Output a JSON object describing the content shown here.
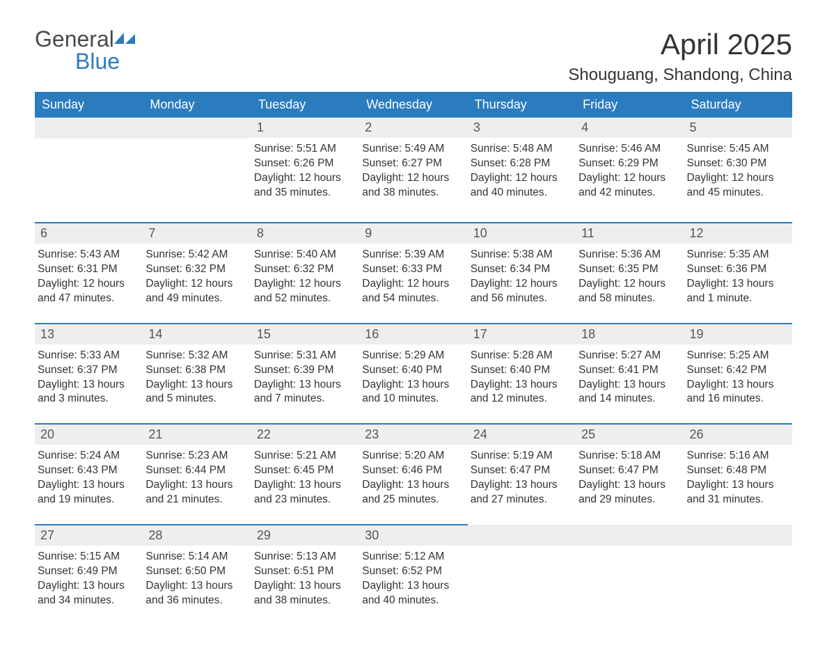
{
  "logo": {
    "word1": "General",
    "word2": "Blue"
  },
  "title": "April 2025",
  "location": "Shouguang, Shandong, China",
  "colors": {
    "brand_blue": "#2b7bbf",
    "header_text": "#ffffff",
    "daynum_bg": "#eeeeee",
    "text": "#333333",
    "background": "#ffffff"
  },
  "day_headers": [
    "Sunday",
    "Monday",
    "Tuesday",
    "Wednesday",
    "Thursday",
    "Friday",
    "Saturday"
  ],
  "weeks": [
    [
      null,
      null,
      {
        "n": "1",
        "sunrise": "5:51 AM",
        "sunset": "6:26 PM",
        "daylight": "12 hours and 35 minutes."
      },
      {
        "n": "2",
        "sunrise": "5:49 AM",
        "sunset": "6:27 PM",
        "daylight": "12 hours and 38 minutes."
      },
      {
        "n": "3",
        "sunrise": "5:48 AM",
        "sunset": "6:28 PM",
        "daylight": "12 hours and 40 minutes."
      },
      {
        "n": "4",
        "sunrise": "5:46 AM",
        "sunset": "6:29 PM",
        "daylight": "12 hours and 42 minutes."
      },
      {
        "n": "5",
        "sunrise": "5:45 AM",
        "sunset": "6:30 PM",
        "daylight": "12 hours and 45 minutes."
      }
    ],
    [
      {
        "n": "6",
        "sunrise": "5:43 AM",
        "sunset": "6:31 PM",
        "daylight": "12 hours and 47 minutes."
      },
      {
        "n": "7",
        "sunrise": "5:42 AM",
        "sunset": "6:32 PM",
        "daylight": "12 hours and 49 minutes."
      },
      {
        "n": "8",
        "sunrise": "5:40 AM",
        "sunset": "6:32 PM",
        "daylight": "12 hours and 52 minutes."
      },
      {
        "n": "9",
        "sunrise": "5:39 AM",
        "sunset": "6:33 PM",
        "daylight": "12 hours and 54 minutes."
      },
      {
        "n": "10",
        "sunrise": "5:38 AM",
        "sunset": "6:34 PM",
        "daylight": "12 hours and 56 minutes."
      },
      {
        "n": "11",
        "sunrise": "5:36 AM",
        "sunset": "6:35 PM",
        "daylight": "12 hours and 58 minutes."
      },
      {
        "n": "12",
        "sunrise": "5:35 AM",
        "sunset": "6:36 PM",
        "daylight": "13 hours and 1 minute."
      }
    ],
    [
      {
        "n": "13",
        "sunrise": "5:33 AM",
        "sunset": "6:37 PM",
        "daylight": "13 hours and 3 minutes."
      },
      {
        "n": "14",
        "sunrise": "5:32 AM",
        "sunset": "6:38 PM",
        "daylight": "13 hours and 5 minutes."
      },
      {
        "n": "15",
        "sunrise": "5:31 AM",
        "sunset": "6:39 PM",
        "daylight": "13 hours and 7 minutes."
      },
      {
        "n": "16",
        "sunrise": "5:29 AM",
        "sunset": "6:40 PM",
        "daylight": "13 hours and 10 minutes."
      },
      {
        "n": "17",
        "sunrise": "5:28 AM",
        "sunset": "6:40 PM",
        "daylight": "13 hours and 12 minutes."
      },
      {
        "n": "18",
        "sunrise": "5:27 AM",
        "sunset": "6:41 PM",
        "daylight": "13 hours and 14 minutes."
      },
      {
        "n": "19",
        "sunrise": "5:25 AM",
        "sunset": "6:42 PM",
        "daylight": "13 hours and 16 minutes."
      }
    ],
    [
      {
        "n": "20",
        "sunrise": "5:24 AM",
        "sunset": "6:43 PM",
        "daylight": "13 hours and 19 minutes."
      },
      {
        "n": "21",
        "sunrise": "5:23 AM",
        "sunset": "6:44 PM",
        "daylight": "13 hours and 21 minutes."
      },
      {
        "n": "22",
        "sunrise": "5:21 AM",
        "sunset": "6:45 PM",
        "daylight": "13 hours and 23 minutes."
      },
      {
        "n": "23",
        "sunrise": "5:20 AM",
        "sunset": "6:46 PM",
        "daylight": "13 hours and 25 minutes."
      },
      {
        "n": "24",
        "sunrise": "5:19 AM",
        "sunset": "6:47 PM",
        "daylight": "13 hours and 27 minutes."
      },
      {
        "n": "25",
        "sunrise": "5:18 AM",
        "sunset": "6:47 PM",
        "daylight": "13 hours and 29 minutes."
      },
      {
        "n": "26",
        "sunrise": "5:16 AM",
        "sunset": "6:48 PM",
        "daylight": "13 hours and 31 minutes."
      }
    ],
    [
      {
        "n": "27",
        "sunrise": "5:15 AM",
        "sunset": "6:49 PM",
        "daylight": "13 hours and 34 minutes."
      },
      {
        "n": "28",
        "sunrise": "5:14 AM",
        "sunset": "6:50 PM",
        "daylight": "13 hours and 36 minutes."
      },
      {
        "n": "29",
        "sunrise": "5:13 AM",
        "sunset": "6:51 PM",
        "daylight": "13 hours and 38 minutes."
      },
      {
        "n": "30",
        "sunrise": "5:12 AM",
        "sunset": "6:52 PM",
        "daylight": "13 hours and 40 minutes."
      },
      null,
      null,
      null
    ]
  ],
  "labels": {
    "sunrise": "Sunrise: ",
    "sunset": "Sunset: ",
    "daylight": "Daylight: "
  }
}
